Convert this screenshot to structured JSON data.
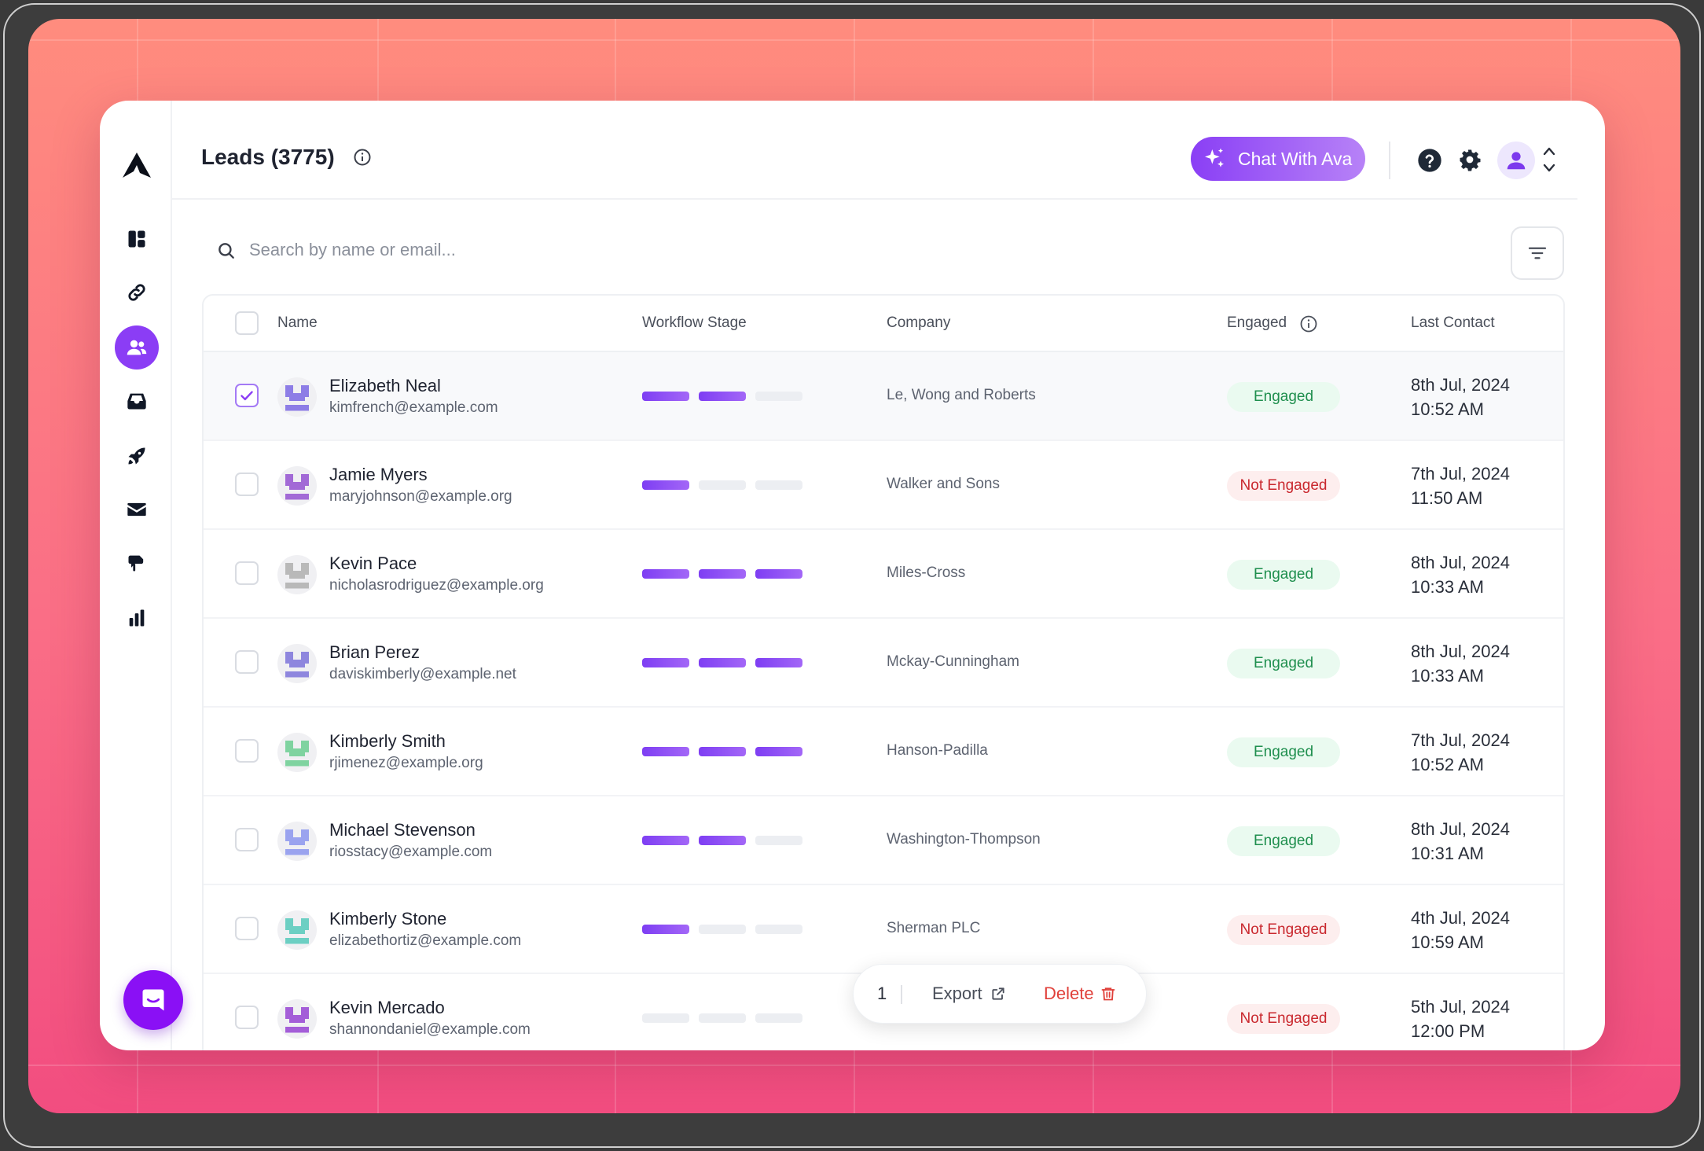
{
  "header": {
    "title": "Leads (3775)",
    "chat_button": "Chat With Ava"
  },
  "search": {
    "placeholder": "Search by name or email..."
  },
  "table": {
    "columns": {
      "name": "Name",
      "workflow_stage": "Workflow Stage",
      "company": "Company",
      "engaged": "Engaged",
      "last_contact": "Last Contact"
    },
    "rows": [
      {
        "name": "Elizabeth Neal",
        "email": "kimfrench@example.com",
        "stage": 2,
        "company": "Le, Wong and Roberts",
        "engaged": "Engaged",
        "date": "8th Jul, 2024",
        "time": "10:52 AM",
        "selected": true
      },
      {
        "name": "Jamie Myers",
        "email": "maryjohnson@example.org",
        "stage": 1,
        "company": "Walker and Sons",
        "engaged": "Not Engaged",
        "date": "7th Jul, 2024",
        "time": "11:50 AM",
        "selected": false
      },
      {
        "name": "Kevin Pace",
        "email": "nicholasrodriguez@example.org",
        "stage": 3,
        "company": "Miles-Cross",
        "engaged": "Engaged",
        "date": "8th Jul, 2024",
        "time": "10:33 AM",
        "selected": false
      },
      {
        "name": "Brian Perez",
        "email": "daviskimberly@example.net",
        "stage": 3,
        "company": "Mckay-Cunningham",
        "engaged": "Engaged",
        "date": "8th Jul, 2024",
        "time": "10:33 AM",
        "selected": false
      },
      {
        "name": "Kimberly Smith",
        "email": "rjimenez@example.org",
        "stage": 3,
        "company": "Hanson-Padilla",
        "engaged": "Engaged",
        "date": "7th Jul, 2024",
        "time": "10:52 AM",
        "selected": false
      },
      {
        "name": "Michael Stevenson",
        "email": "riosstacy@example.com",
        "stage": 2,
        "company": "Washington-Thompson",
        "engaged": "Engaged",
        "date": "8th Jul, 2024",
        "time": "10:31 AM",
        "selected": false
      },
      {
        "name": "Kimberly Stone",
        "email": "elizabethortiz@example.com",
        "stage": 1,
        "company": "Sherman PLC",
        "engaged": "Not Engaged",
        "date": "4th Jul, 2024",
        "time": "10:59 AM",
        "selected": false
      },
      {
        "name": "Kevin Mercado",
        "email": "shannondaniel@example.com",
        "stage": 0,
        "company": "",
        "engaged": "Not Engaged",
        "date": "5th Jul, 2024",
        "time": "12:00 PM",
        "selected": false
      }
    ]
  },
  "action_bar": {
    "count": "1",
    "export": "Export",
    "delete": "Delete"
  },
  "colors": {
    "accent": "#8b3df5",
    "engaged_text": "#1f8f4e",
    "not_engaged_text": "#c9282e",
    "delete": "#e0403a"
  },
  "icons": {
    "sidebar": [
      "dashboard-icon",
      "link-icon",
      "users-icon",
      "inbox-icon",
      "rocket-icon",
      "mail-icon",
      "megaphone-icon",
      "bar-chart-icon"
    ],
    "header": [
      "info-icon",
      "sparkle-icon",
      "help-icon",
      "gear-icon",
      "user-icon",
      "chevron-updown-icon"
    ]
  }
}
